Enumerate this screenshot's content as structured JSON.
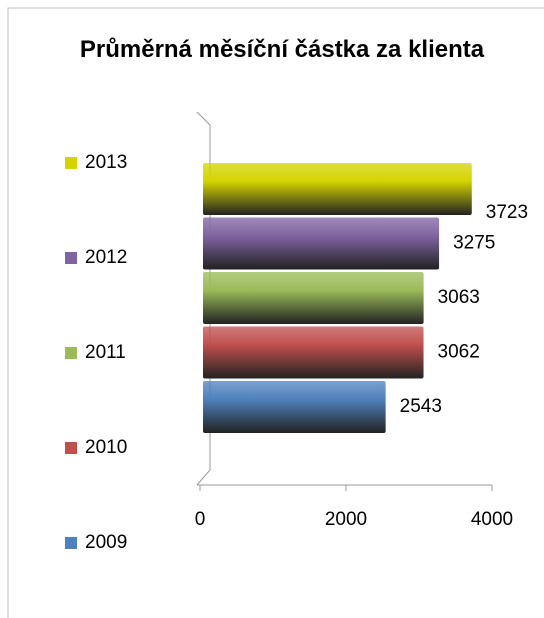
{
  "chart_data": {
    "type": "bar",
    "orientation": "horizontal",
    "title": "Průměrná měsíční částka za klienta",
    "series": [
      {
        "name": "2013",
        "color": "#d4d400",
        "values": [
          3723
        ]
      },
      {
        "name": "2012",
        "color": "#8064a2",
        "values": [
          3275
        ]
      },
      {
        "name": "2011",
        "color": "#9bbb59",
        "values": [
          3063
        ]
      },
      {
        "name": "2010",
        "color": "#c0504d",
        "values": [
          3062
        ]
      },
      {
        "name": "2009",
        "color": "#4f81bd",
        "values": [
          2543
        ]
      }
    ],
    "xlim": [
      0,
      4000
    ],
    "xticks": [
      0,
      2000,
      4000
    ],
    "legend": "left"
  }
}
